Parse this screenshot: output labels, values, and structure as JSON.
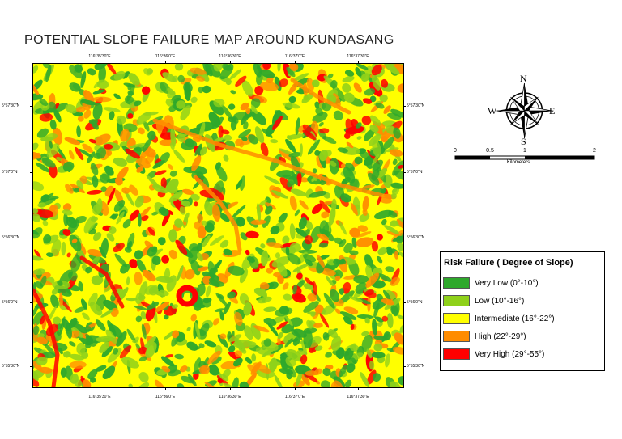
{
  "map": {
    "title": "POTENTIAL SLOPE FAILURE MAP AROUND KUNDASANG",
    "longitude_ticks": [
      "116°35'30\"E",
      "116°36'0\"E",
      "116°36'30\"E",
      "116°37'0\"E",
      "116°37'30\"E"
    ],
    "latitude_ticks": [
      "5°57'30\"N",
      "5°57'0\"N",
      "5°56'30\"N",
      "5°56'0\"N",
      "5°55'30\"N"
    ]
  },
  "compass": {
    "north": "N",
    "south": "S",
    "east": "E",
    "west": "W"
  },
  "scalebar": {
    "labels": [
      "0",
      "0.5",
      "1",
      "2"
    ],
    "unit": "Kilometers"
  },
  "legend": {
    "title": "Risk Failure ( Degree of  Slope)",
    "items": [
      {
        "label": "Very Low (0°-10°)",
        "color": "#2ea82b"
      },
      {
        "label": "Low (10°-16°)",
        "color": "#8fd11a"
      },
      {
        "label": "Intermediate (16°-22°)",
        "color": "#ffff00"
      },
      {
        "label": "High (22°-29°)",
        "color": "#ff8c00"
      },
      {
        "label": "Very High (29°-55°)",
        "color": "#ff0000"
      }
    ]
  }
}
